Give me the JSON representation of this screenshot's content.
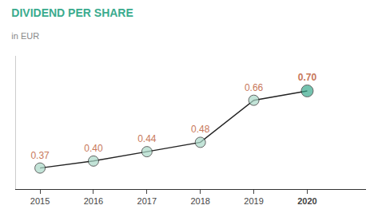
{
  "chart_data": {
    "type": "line",
    "title": "DIVIDEND PER SHARE",
    "subtitle": "in EUR",
    "x": [
      2015,
      2016,
      2017,
      2018,
      2019,
      2020
    ],
    "values": [
      0.37,
      0.4,
      0.44,
      0.48,
      0.66,
      0.7
    ],
    "value_labels": [
      "0.37",
      "0.40",
      "0.44",
      "0.48",
      "0.66",
      "0.70"
    ],
    "data_labels": true,
    "color": "#222222",
    "colors": [
      "#aad9c8",
      "#aad9c8",
      "#aad9c8",
      "#aad9c8",
      "#aad9c8",
      "#3aab8e"
    ],
    "marker": "circle",
    "xlim": [
      2014.55,
      2021.1
    ],
    "xticks": [
      2015,
      2016,
      2017,
      2018,
      2019,
      2020
    ],
    "ylim": [
      0.28,
      0.85
    ],
    "grid": false,
    "tick_labels": "x"
  }
}
